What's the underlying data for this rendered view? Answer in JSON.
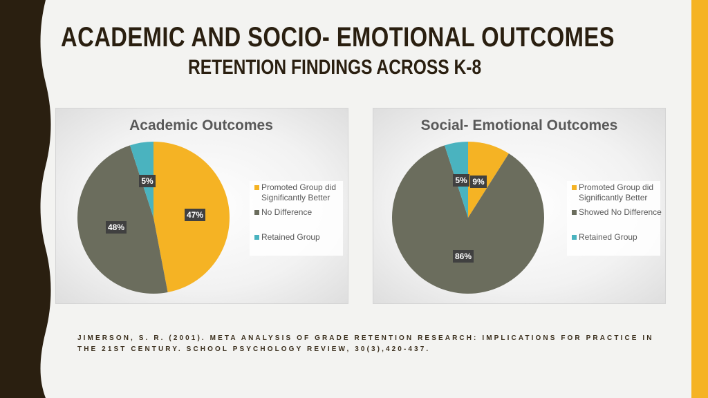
{
  "colors": {
    "promoted": "#f5b324",
    "no_difference": "#6b6d5d",
    "retained": "#4ab3bf",
    "accent_bar": "#f5b324",
    "dark_band": "#2a1f10"
  },
  "slide": {
    "title": "ACADEMIC AND SOCIO- EMOTIONAL  OUTCOMES",
    "subtitle": "RETENTION FINDINGS ACROSS K-8",
    "citation": "JIMERSON, S. R. (2001). META ANALYSIS OF GRADE RETENTION RESEARCH: IMPLICATIONS FOR PRACTICE IN THE 21ST CENTURY. SCHOOL PSYCHOLOGY REVIEW, 30(3),420-437."
  },
  "chart_data": [
    {
      "type": "pie",
      "title": "Academic Outcomes",
      "categories": [
        "Promoted Group did Significantly Better",
        "No Difference",
        "Retained Group"
      ],
      "legend_lines": [
        [
          "Promoted Group did",
          "Significantly Better"
        ],
        [
          "No Difference"
        ],
        [
          "Retained Group"
        ]
      ],
      "values": [
        47,
        48,
        5
      ],
      "labels": [
        "47%",
        "48%",
        "5%"
      ],
      "legend": "right"
    },
    {
      "type": "pie",
      "title": "Social- Emotional Outcomes",
      "categories": [
        "Promoted Group did Significantly Better",
        "Showed No Difference",
        "Retained Group"
      ],
      "legend_lines": [
        [
          "Promoted Group did",
          "Significantly Better"
        ],
        [
          "Showed No Difference"
        ],
        [
          "Retained Group"
        ]
      ],
      "values": [
        9,
        86,
        5
      ],
      "labels": [
        "9%",
        "86%",
        "5%"
      ],
      "legend": "right"
    }
  ]
}
